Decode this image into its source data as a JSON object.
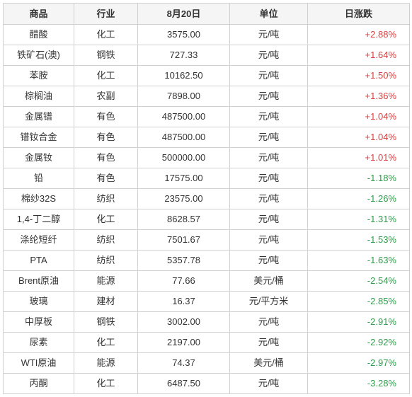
{
  "table": {
    "headers": {
      "product": "商品",
      "industry": "行业",
      "date": "8月20日",
      "unit": "单位",
      "change": "日涨跌"
    },
    "colors": {
      "positive": "#d94040",
      "negative": "#2e9c4a",
      "border": "#d0d0d0",
      "header_bg": "#f5f5f5",
      "text": "#333333"
    },
    "rows": [
      {
        "product": "醋酸",
        "industry": "化工",
        "price": "3575.00",
        "unit": "元/吨",
        "change": "+2.88%",
        "dir": "pos"
      },
      {
        "product": "铁矿石(澳)",
        "industry": "钢铁",
        "price": "727.33",
        "unit": "元/吨",
        "change": "+1.64%",
        "dir": "pos"
      },
      {
        "product": "苯胺",
        "industry": "化工",
        "price": "10162.50",
        "unit": "元/吨",
        "change": "+1.50%",
        "dir": "pos"
      },
      {
        "product": "棕榈油",
        "industry": "农副",
        "price": "7898.00",
        "unit": "元/吨",
        "change": "+1.36%",
        "dir": "pos"
      },
      {
        "product": "金属镨",
        "industry": "有色",
        "price": "487500.00",
        "unit": "元/吨",
        "change": "+1.04%",
        "dir": "pos"
      },
      {
        "product": "镨钕合金",
        "industry": "有色",
        "price": "487500.00",
        "unit": "元/吨",
        "change": "+1.04%",
        "dir": "pos"
      },
      {
        "product": "金属钕",
        "industry": "有色",
        "price": "500000.00",
        "unit": "元/吨",
        "change": "+1.01%",
        "dir": "pos"
      },
      {
        "product": "铅",
        "industry": "有色",
        "price": "17575.00",
        "unit": "元/吨",
        "change": "-1.18%",
        "dir": "neg"
      },
      {
        "product": "棉纱32S",
        "industry": "纺织",
        "price": "23575.00",
        "unit": "元/吨",
        "change": "-1.26%",
        "dir": "neg"
      },
      {
        "product": "1,4-丁二醇",
        "industry": "化工",
        "price": "8628.57",
        "unit": "元/吨",
        "change": "-1.31%",
        "dir": "neg"
      },
      {
        "product": "涤纶短纤",
        "industry": "纺织",
        "price": "7501.67",
        "unit": "元/吨",
        "change": "-1.53%",
        "dir": "neg"
      },
      {
        "product": "PTA",
        "industry": "纺织",
        "price": "5357.78",
        "unit": "元/吨",
        "change": "-1.63%",
        "dir": "neg"
      },
      {
        "product": "Brent原油",
        "industry": "能源",
        "price": "77.66",
        "unit": "美元/桶",
        "change": "-2.54%",
        "dir": "neg"
      },
      {
        "product": "玻璃",
        "industry": "建材",
        "price": "16.37",
        "unit": "元/平方米",
        "change": "-2.85%",
        "dir": "neg"
      },
      {
        "product": "中厚板",
        "industry": "钢铁",
        "price": "3002.00",
        "unit": "元/吨",
        "change": "-2.91%",
        "dir": "neg"
      },
      {
        "product": "尿素",
        "industry": "化工",
        "price": "2197.00",
        "unit": "元/吨",
        "change": "-2.92%",
        "dir": "neg"
      },
      {
        "product": "WTI原油",
        "industry": "能源",
        "price": "74.37",
        "unit": "美元/桶",
        "change": "-2.97%",
        "dir": "neg"
      },
      {
        "product": "丙酮",
        "industry": "化工",
        "price": "6487.50",
        "unit": "元/吨",
        "change": "-3.28%",
        "dir": "neg"
      }
    ]
  }
}
